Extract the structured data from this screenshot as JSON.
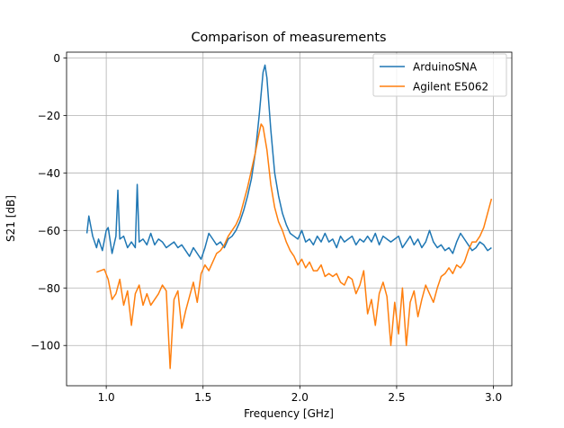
{
  "chart_data": {
    "type": "line",
    "title": "Comparison of measurements",
    "x_label": "Frequency [GHz]",
    "y_label": "S21 [dB]",
    "xlim": [
      0.795,
      3.095
    ],
    "ylim": [
      -114,
      2
    ],
    "xticks": [
      {
        "value": 1,
        "label": "1.0"
      },
      1.5,
      {
        "value": 2,
        "label": "2.0"
      },
      2.5,
      {
        "value": 3,
        "label": "3.0"
      }
    ],
    "yticks": [
      {
        "value": -100,
        "label": "−100"
      },
      {
        "value": -80,
        "label": "−80"
      },
      {
        "value": -60,
        "label": "−60"
      },
      {
        "value": -40,
        "label": "−40"
      },
      {
        "value": -20,
        "label": "−20"
      },
      0
    ],
    "grid": true,
    "legend": "upper right",
    "series": [
      {
        "name": "ArduinoSNA",
        "color": "#1f77b4",
        "x": [
          0.9,
          0.91,
          0.93,
          0.95,
          0.96,
          0.98,
          1.0,
          1.01,
          1.03,
          1.05,
          1.06,
          1.07,
          1.09,
          1.11,
          1.13,
          1.15,
          1.16,
          1.17,
          1.19,
          1.21,
          1.23,
          1.25,
          1.27,
          1.29,
          1.31,
          1.33,
          1.35,
          1.37,
          1.39,
          1.41,
          1.43,
          1.45,
          1.47,
          1.49,
          1.51,
          1.53,
          1.55,
          1.57,
          1.59,
          1.61,
          1.63,
          1.65,
          1.67,
          1.69,
          1.71,
          1.73,
          1.75,
          1.77,
          1.79,
          1.81,
          1.82,
          1.83,
          1.85,
          1.87,
          1.89,
          1.91,
          1.93,
          1.95,
          1.97,
          1.99,
          2.01,
          2.03,
          2.05,
          2.07,
          2.09,
          2.11,
          2.13,
          2.15,
          2.17,
          2.19,
          2.21,
          2.23,
          2.25,
          2.27,
          2.29,
          2.31,
          2.33,
          2.35,
          2.37,
          2.39,
          2.41,
          2.43,
          2.45,
          2.47,
          2.49,
          2.51,
          2.53,
          2.55,
          2.57,
          2.59,
          2.61,
          2.63,
          2.65,
          2.67,
          2.69,
          2.71,
          2.73,
          2.75,
          2.77,
          2.79,
          2.81,
          2.83,
          2.85,
          2.87,
          2.89,
          2.91,
          2.93,
          2.95,
          2.97,
          2.99
        ],
        "values": [
          -61,
          -55,
          -62,
          -66,
          -63,
          -67,
          -60,
          -59,
          -68,
          -62,
          -46,
          -63,
          -62,
          -66,
          -64,
          -66,
          -44,
          -64,
          -63,
          -65,
          -61,
          -65,
          -63,
          -64,
          -66,
          -65,
          -64,
          -66,
          -65,
          -67,
          -69,
          -66,
          -68,
          -70,
          -66,
          -61,
          -63,
          -65,
          -64,
          -66,
          -63,
          -62,
          -60,
          -57,
          -53,
          -48,
          -42,
          -33,
          -20,
          -5,
          -2.5,
          -7,
          -25,
          -40,
          -48,
          -54,
          -58,
          -61,
          -62,
          -63,
          -60,
          -64,
          -63,
          -65,
          -62,
          -64,
          -61,
          -64,
          -63,
          -66,
          -62,
          -64,
          -63,
          -62,
          -65,
          -63,
          -64,
          -62,
          -64,
          -61,
          -65,
          -62,
          -63,
          -64,
          -63,
          -62,
          -66,
          -64,
          -62,
          -65,
          -63,
          -66,
          -64,
          -60,
          -64,
          -66,
          -65,
          -67,
          -66,
          -68,
          -64,
          -61,
          -63,
          -65,
          -67,
          -66,
          -64,
          -65,
          -67,
          -66
        ]
      },
      {
        "name": "Agilent E5062",
        "color": "#ff7f0e",
        "x": [
          0.95,
          0.97,
          0.99,
          1.01,
          1.03,
          1.05,
          1.07,
          1.09,
          1.11,
          1.13,
          1.15,
          1.17,
          1.19,
          1.21,
          1.23,
          1.25,
          1.27,
          1.29,
          1.31,
          1.33,
          1.35,
          1.37,
          1.39,
          1.41,
          1.43,
          1.45,
          1.47,
          1.49,
          1.51,
          1.53,
          1.55,
          1.57,
          1.59,
          1.61,
          1.63,
          1.65,
          1.67,
          1.69,
          1.71,
          1.73,
          1.75,
          1.77,
          1.79,
          1.8,
          1.81,
          1.83,
          1.85,
          1.87,
          1.89,
          1.91,
          1.93,
          1.95,
          1.97,
          1.99,
          2.01,
          2.03,
          2.05,
          2.07,
          2.09,
          2.11,
          2.13,
          2.15,
          2.17,
          2.19,
          2.21,
          2.23,
          2.25,
          2.27,
          2.29,
          2.31,
          2.33,
          2.35,
          2.37,
          2.39,
          2.41,
          2.43,
          2.45,
          2.47,
          2.49,
          2.51,
          2.53,
          2.55,
          2.57,
          2.59,
          2.61,
          2.63,
          2.65,
          2.67,
          2.69,
          2.71,
          2.73,
          2.75,
          2.77,
          2.79,
          2.81,
          2.83,
          2.85,
          2.87,
          2.89,
          2.91,
          2.93,
          2.95,
          2.97,
          2.99
        ],
        "values": [
          -74.5,
          -74,
          -73.5,
          -77,
          -84,
          -82,
          -77,
          -86,
          -81,
          -93,
          -82,
          -79,
          -86,
          -82,
          -86,
          -84,
          -82,
          -79,
          -81,
          -108,
          -84,
          -81,
          -94,
          -88,
          -83,
          -78,
          -85,
          -75,
          -72,
          -74,
          -71,
          -68,
          -67,
          -65,
          -62,
          -60,
          -58,
          -55,
          -50,
          -45,
          -39,
          -33,
          -26,
          -23,
          -24,
          -32,
          -44,
          -52,
          -57,
          -60,
          -64,
          -67,
          -69,
          -72,
          -70,
          -73,
          -71,
          -74,
          -74,
          -72,
          -76,
          -75,
          -76,
          -75,
          -78,
          -79,
          -76,
          -77,
          -82,
          -79,
          -74,
          -89,
          -84,
          -93,
          -82,
          -78,
          -83,
          -100,
          -85,
          -96,
          -80,
          -100,
          -85,
          -81,
          -90,
          -84,
          -79,
          -82,
          -85,
          -80,
          -76,
          -75,
          -73,
          -75,
          -72,
          -73,
          -71,
          -67,
          -64,
          -64,
          -62,
          -59,
          -54,
          -49
        ]
      }
    ]
  }
}
